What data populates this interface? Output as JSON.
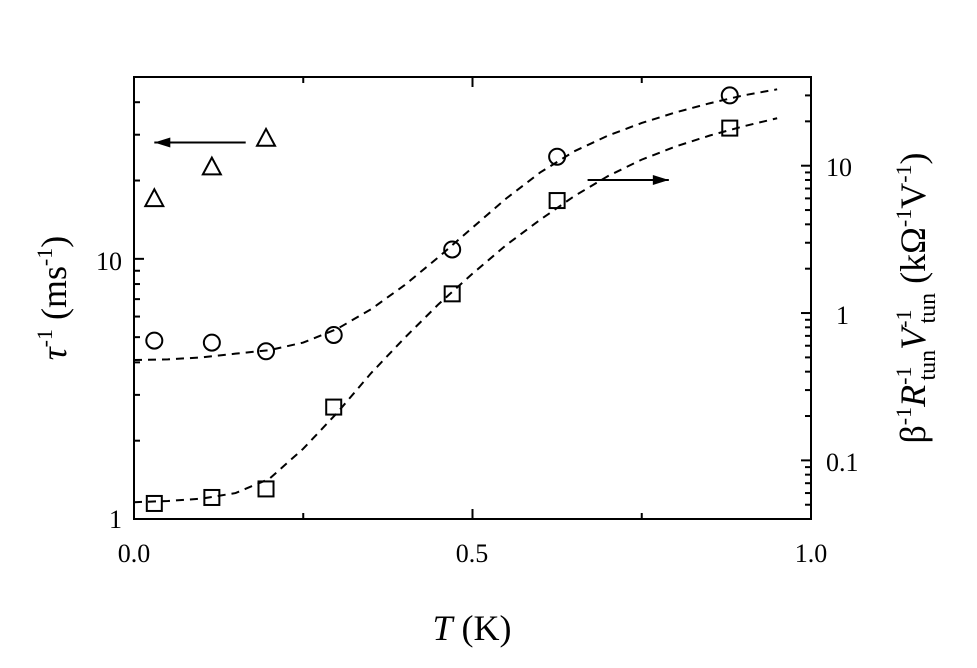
{
  "chart_data": {
    "type": "scatter",
    "xlabel_var": "T",
    "xlabel_unit": "(K)",
    "xlim": [
      0,
      1.0
    ],
    "x_ticks": [
      "0.0",
      "0.5",
      "1.0"
    ],
    "left_axis": {
      "label_var": "τ",
      "label_exp": "-1",
      "label_unit_open": "(ms",
      "label_unit_exp": "-1",
      "label_unit_close": ")",
      "scale": "log",
      "ylim": [
        1,
        50
      ],
      "tick_labels": [
        "1",
        "10"
      ]
    },
    "right_axis": {
      "label_beta": "β",
      "label_beta_exp": "-1",
      "label_R": "R",
      "label_R_exp": "-1",
      "label_R_sub": "tun",
      "label_V": "V",
      "label_V_exp": "-1",
      "label_V_sub": "tun",
      "label_unit_open": "(kΩ",
      "label_unit_exp1": "-1",
      "label_unit_mid": "V",
      "label_unit_exp2": "-1",
      "label_unit_close": ")",
      "scale": "log",
      "ylim": [
        0.04,
        40
      ],
      "tick_labels": [
        "0.1",
        "1",
        "10"
      ]
    },
    "series": [
      {
        "marker": "triangle",
        "axis": "left",
        "x": [
          0.03,
          0.115,
          0.195
        ],
        "y": [
          17,
          22.5,
          29
        ]
      },
      {
        "marker": "circle",
        "axis": "right",
        "x": [
          0.03,
          0.115,
          0.195,
          0.295,
          0.47,
          0.625,
          0.88
        ],
        "y": [
          0.65,
          0.63,
          0.55,
          0.71,
          2.7,
          11.5,
          30
        ]
      },
      {
        "marker": "square",
        "axis": "right",
        "x": [
          0.03,
          0.115,
          0.195,
          0.295,
          0.47,
          0.625,
          0.88
        ],
        "y": [
          0.051,
          0.056,
          0.064,
          0.23,
          1.35,
          5.8,
          18
        ]
      }
    ],
    "fits": [
      {
        "style": "dashed",
        "axis": "right",
        "x": [
          0.0,
          0.05,
          0.1,
          0.15,
          0.2,
          0.25,
          0.3,
          0.35,
          0.4,
          0.45,
          0.5,
          0.55,
          0.6,
          0.65,
          0.7,
          0.75,
          0.8,
          0.85,
          0.9,
          0.95
        ],
        "y": [
          0.48,
          0.485,
          0.5,
          0.53,
          0.56,
          0.63,
          0.78,
          1.06,
          1.55,
          2.4,
          3.8,
          6.0,
          9.0,
          12.5,
          16,
          19.5,
          23,
          26.5,
          30,
          33
        ]
      },
      {
        "style": "dashed",
        "axis": "right",
        "x": [
          0.0,
          0.05,
          0.1,
          0.15,
          0.2,
          0.25,
          0.3,
          0.35,
          0.4,
          0.45,
          0.5,
          0.55,
          0.6,
          0.65,
          0.7,
          0.75,
          0.8,
          0.85,
          0.9,
          0.95
        ],
        "y": [
          0.052,
          0.053,
          0.055,
          0.06,
          0.075,
          0.12,
          0.21,
          0.39,
          0.68,
          1.15,
          1.85,
          2.9,
          4.3,
          6.2,
          8.5,
          11,
          13.5,
          16,
          18.5,
          21
        ]
      }
    ],
    "annotations": [
      {
        "type": "arrow",
        "direction": "left",
        "x_from": 0.165,
        "x_to": 0.03,
        "axis": "left",
        "y": 28
      },
      {
        "type": "arrow",
        "direction": "right",
        "x_from": 0.67,
        "x_to": 0.79,
        "axis": "right",
        "y": 8.0
      }
    ],
    "grid": false
  }
}
